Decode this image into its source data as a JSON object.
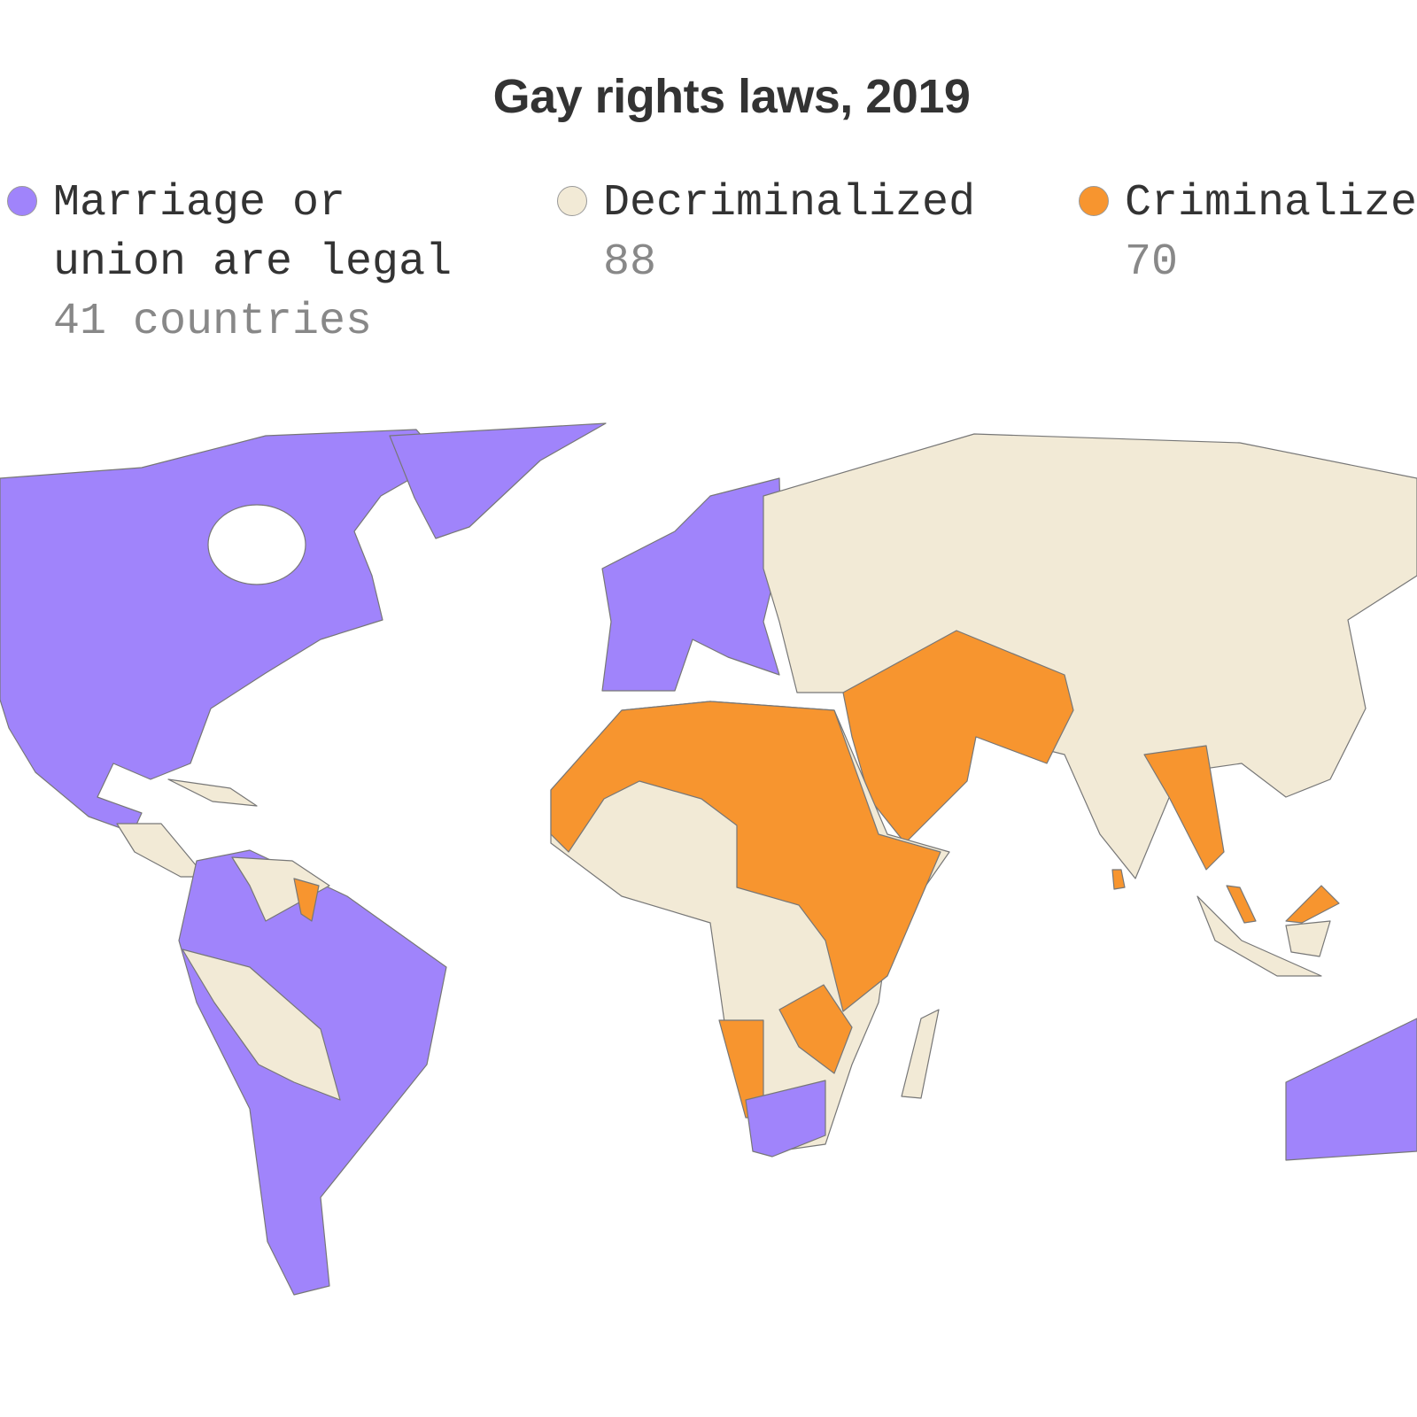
{
  "header": {
    "title": "Gay rights laws, 2019"
  },
  "legend": [
    {
      "label": "Marriage or union are legal",
      "count": "41 countries",
      "color": "#a084fb"
    },
    {
      "label": "Decriminalized",
      "count": "88",
      "color": "#f2ead6"
    },
    {
      "label": "Criminalized",
      "count": "70",
      "color": "#f7952f"
    }
  ]
}
